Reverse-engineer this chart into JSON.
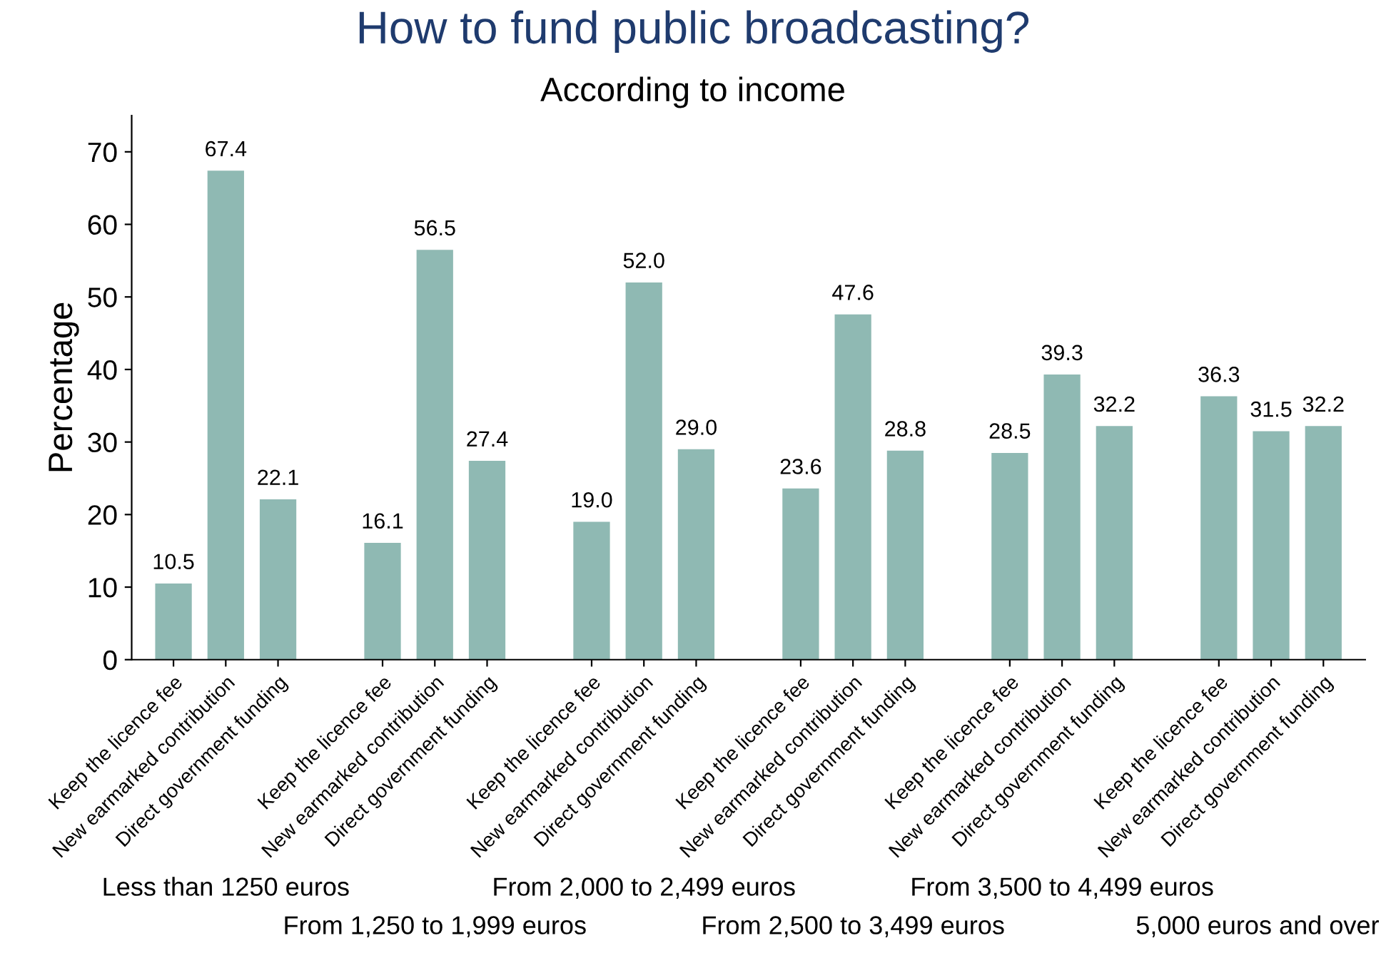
{
  "chart_data": {
    "type": "bar",
    "title": "How to fund public broadcasting?",
    "subtitle": "According to income",
    "ylabel": "Percentage",
    "categories": [
      "Keep the licence fee",
      "New earmarked contribution",
      "Direct government funding",
      null,
      "Keep the licence fee",
      "New earmarked contribution",
      "Direct government funding",
      null,
      "Keep the licence fee",
      "New earmarked contribution",
      "Direct government funding",
      null,
      "Keep the licence fee",
      "New earmarked contribution",
      "Direct government funding",
      null,
      "Keep the licence fee",
      "New earmarked contribution",
      "Direct government funding",
      null,
      "Keep the licence fee",
      "New earmarked contribution",
      "Direct government funding"
    ],
    "values": [
      10.5,
      67.4,
      22.1,
      null,
      16.1,
      56.5,
      27.4,
      null,
      19.0,
      52.0,
      29.0,
      null,
      23.6,
      47.6,
      28.8,
      null,
      28.5,
      39.3,
      32.2,
      null,
      36.3,
      31.5,
      32.2
    ],
    "value_labels": [
      "10.5",
      "67.4",
      "22.1",
      null,
      "16.1",
      "56.5",
      "27.4",
      null,
      "19.0",
      "52.0",
      "29.0",
      null,
      "23.6",
      "47.6",
      "28.8",
      null,
      "28.5",
      "39.3",
      "32.2",
      null,
      "36.3",
      "31.5",
      "32.2"
    ],
    "color": "#8fb9b3",
    "ylim": [
      0,
      75
    ],
    "yticks": [
      0,
      10,
      20,
      30,
      40,
      50,
      60,
      70
    ],
    "grid": false,
    "annotations": [
      "Less than 1250 euros",
      "From 1,250 to 1,999 euros",
      "From 2,000 to 2,499 euros",
      "From 2,500 to 3,499 euros",
      "From 3,500 to 4,499 euros",
      "5,000 euros and over"
    ]
  }
}
